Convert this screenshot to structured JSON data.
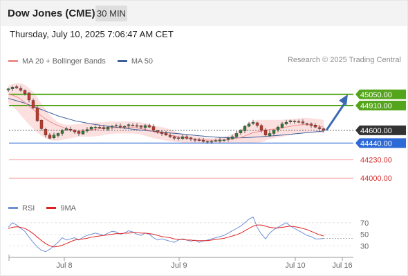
{
  "header": {
    "title": "Dow Jones (CME)",
    "timeframe": "30 MIN"
  },
  "date_label": "Thursday, July 10, 2025 7:06:47 AM CET",
  "legend": {
    "items": [
      {
        "label": "MA 20 + Bollinger Bands",
        "color": "#f08c8c"
      },
      {
        "label": "MA 50",
        "color": "#3d5f9a"
      }
    ],
    "rsi_items": [
      {
        "label": "RSI",
        "color": "#6f8fd8"
      },
      {
        "label": "9MA",
        "color": "#e02020"
      }
    ]
  },
  "research_label": "Research © 2025 Trading Central",
  "colors": {
    "resistance": "#55a51c",
    "support": "#2e6ad6",
    "minor_support": "#f4a0a0",
    "current": "#333333",
    "bollinger": "#fbd6d6",
    "candle_up": "#2e7d32",
    "candle_down": "#c0392b",
    "arrow": "#3b69b2"
  },
  "chart_data": [
    {
      "type": "candlestick",
      "y_range": [
        43760,
        45290
      ],
      "x_range": [
        "Jul 7 22:00",
        "Jul 16 00:00"
      ],
      "x_ticks": [
        "Jul 8",
        "Jul 9",
        "Jul 10",
        "Jul 16"
      ],
      "levels": [
        {
          "value": 45050,
          "label": "45050.00",
          "kind": "resistance"
        },
        {
          "value": 44910,
          "label": "44910.00",
          "kind": "resistance"
        },
        {
          "value": 44600,
          "label": "44600.00",
          "kind": "current"
        },
        {
          "value": 44440,
          "label": "44440.00",
          "kind": "support"
        },
        {
          "value": 44230,
          "label": "44230.00",
          "kind": "minor_support"
        },
        {
          "value": 44000,
          "label": "44000.00",
          "kind": "minor_support"
        }
      ],
      "price_path": [
        45120,
        45140,
        45130,
        45100,
        45060,
        44980,
        44880,
        44720,
        44620,
        44540,
        44500,
        44540,
        44560,
        44600,
        44620,
        44600,
        44580,
        44560,
        44590,
        44610,
        44640,
        44640,
        44630,
        44620,
        44640,
        44650,
        44660,
        44640,
        44650,
        44670,
        44660,
        44650,
        44640,
        44660,
        44640,
        44600,
        44580,
        44560,
        44540,
        44520,
        44500,
        44500,
        44520,
        44500,
        44490,
        44480,
        44470,
        44460,
        44460,
        44460,
        44470,
        44480,
        44480,
        44500,
        44520,
        44560,
        44600,
        44650,
        44680,
        44700,
        44660,
        44600,
        44540,
        44560,
        44600,
        44640,
        44680,
        44700,
        44720,
        44710,
        44700,
        44690,
        44680,
        44660,
        44640,
        44620,
        44600
      ],
      "ma20": [
        45050,
        45040,
        45020,
        44990,
        44950,
        44900,
        44860,
        44820,
        44780,
        44740,
        44710,
        44680,
        44660,
        44640,
        44620,
        44610,
        44600,
        44600,
        44600,
        44600,
        44610,
        44610,
        44620,
        44620,
        44630,
        44630,
        44630,
        44630,
        44640,
        44640,
        44640,
        44630,
        44620,
        44610,
        44600,
        44580,
        44570,
        44560,
        44550,
        44540,
        44530,
        44520,
        44510,
        44500,
        44495,
        44490,
        44485,
        44480,
        44478,
        44475,
        44475,
        44476,
        44478,
        44482,
        44490,
        44500,
        44510,
        44530,
        44550,
        44570,
        44580,
        44590,
        44600,
        44610,
        44615,
        44620,
        44630,
        44640,
        44650,
        44660,
        44665,
        44670,
        44670,
        44665,
        44660,
        44650,
        44640
      ],
      "bb_upper": [
        45160,
        45180,
        45190,
        45190,
        45170,
        45130,
        45080,
        45010,
        44930,
        44860,
        44790,
        44740,
        44700,
        44680,
        44670,
        44670,
        44675,
        44680,
        44685,
        44690,
        44695,
        44700,
        44700,
        44700,
        44705,
        44710,
        44710,
        44710,
        44710,
        44710,
        44710,
        44705,
        44700,
        44690,
        44680,
        44660,
        44650,
        44640,
        44630,
        44610,
        44590,
        44570,
        44560,
        44550,
        44540,
        44530,
        44520,
        44510,
        44505,
        44500,
        44505,
        44510,
        44520,
        44530,
        44550,
        44580,
        44610,
        44650,
        44690,
        44720,
        44730,
        44730,
        44730,
        44730,
        44730,
        44730,
        44730,
        44735,
        44740,
        44745,
        44750,
        44755,
        44755,
        44750,
        44745,
        44740,
        44730
      ],
      "bb_lower": [
        44940,
        44900,
        44850,
        44790,
        44730,
        44670,
        44620,
        44570,
        44530,
        44500,
        44480,
        44470,
        44470,
        44480,
        44490,
        44500,
        44510,
        44520,
        44520,
        44520,
        44520,
        44525,
        44530,
        44540,
        44550,
        44555,
        44560,
        44560,
        44560,
        44560,
        44560,
        44555,
        44545,
        44530,
        44515,
        44500,
        44490,
        44480,
        44470,
        44460,
        44455,
        44450,
        44445,
        44440,
        44440,
        44440,
        44440,
        44440,
        44440,
        44440,
        44440,
        44440,
        44440,
        44440,
        44440,
        44440,
        44440,
        44440,
        44440,
        44440,
        44445,
        44450,
        44470,
        44490,
        44500,
        44510,
        44520,
        44530,
        44540,
        44550,
        44560,
        44570,
        44575,
        44575,
        44575,
        44570,
        44560
      ],
      "ma50": [
        45000,
        44985,
        44970,
        44955,
        44940,
        44920,
        44900,
        44880,
        44860,
        44840,
        44820,
        44800,
        44780,
        44765,
        44750,
        44735,
        44720,
        44710,
        44700,
        44690,
        44680,
        44672,
        44665,
        44658,
        44650,
        44644,
        44638,
        44632,
        44626,
        44620,
        44614,
        44608,
        44602,
        44597,
        44592,
        44587,
        44582,
        44577,
        44572,
        44567,
        44562,
        44557,
        44552,
        44547,
        44542,
        44537,
        44532,
        44527,
        44522,
        44518,
        44514,
        44511,
        44509,
        44507,
        44506,
        44506,
        44507,
        44508,
        44510,
        44513,
        44516,
        44520,
        44524,
        44528,
        44532,
        44536,
        44540,
        44545,
        44550,
        44555,
        44560,
        44565,
        44570,
        44575,
        44580,
        44585,
        44590
      ],
      "projection": [
        44600,
        45050
      ]
    },
    {
      "type": "line",
      "name": "RSI",
      "y_range": [
        10,
        90
      ],
      "y_ticks": [
        30,
        50,
        70
      ],
      "rsi": [
        62,
        70,
        66,
        60,
        55,
        45,
        36,
        28,
        22,
        20,
        24,
        30,
        36,
        44,
        40,
        42,
        44,
        40,
        45,
        48,
        50,
        52,
        50,
        48,
        52,
        55,
        54,
        50,
        52,
        56,
        54,
        50,
        48,
        52,
        50,
        44,
        40,
        42,
        40,
        38,
        36,
        40,
        42,
        40,
        38,
        40,
        36,
        38,
        40,
        42,
        44,
        46,
        48,
        52,
        56,
        60,
        64,
        70,
        76,
        80,
        62,
        50,
        42,
        52,
        58,
        62,
        66,
        70,
        64,
        60,
        56,
        52,
        48,
        46,
        42,
        42,
        43
      ],
      "ma9": [
        60,
        62,
        63,
        62,
        60,
        56,
        51,
        45,
        39,
        34,
        30,
        28,
        29,
        31,
        34,
        37,
        40,
        41,
        42,
        43,
        45,
        46,
        47,
        48,
        49,
        50,
        51,
        51,
        52,
        52,
        53,
        53,
        52,
        52,
        51,
        50,
        48,
        46,
        45,
        44,
        42,
        41,
        41,
        40,
        40,
        39,
        39,
        39,
        39,
        40,
        41,
        42,
        43,
        45,
        47,
        49,
        52,
        56,
        60,
        64,
        66,
        66,
        64,
        62,
        61,
        61,
        62,
        63,
        64,
        63,
        62,
        60,
        58,
        55,
        52,
        49,
        47
      ]
    }
  ]
}
